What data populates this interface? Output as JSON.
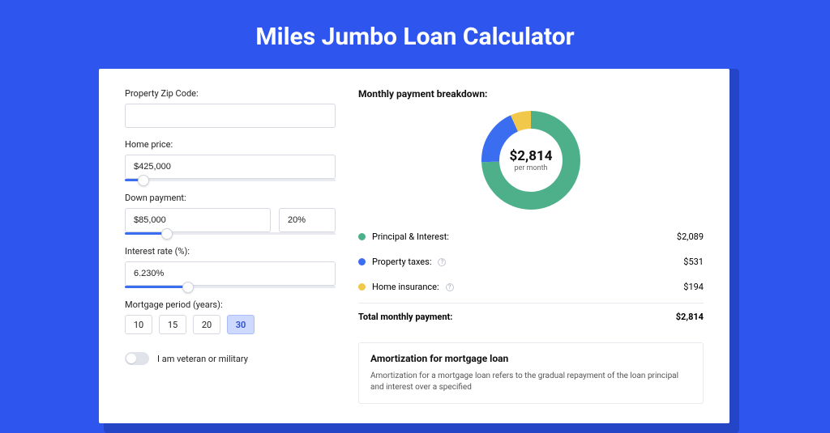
{
  "page": {
    "title": "Miles Jumbo Loan Calculator",
    "bg_color": "#2f55ef",
    "shadow_color": "#2545c7"
  },
  "form": {
    "zip": {
      "label": "Property Zip Code:",
      "value": ""
    },
    "home_price": {
      "label": "Home price:",
      "value": "$425,000",
      "slider_pct": 9
    },
    "down_payment": {
      "label": "Down payment:",
      "amount": "$85,000",
      "percent": "20%",
      "slider_pct": 20
    },
    "interest_rate": {
      "label": "Interest rate (%):",
      "value": "6.230%",
      "slider_pct": 30
    },
    "mortgage_period": {
      "label": "Mortgage period (years):",
      "options": [
        "10",
        "15",
        "20",
        "30"
      ],
      "selected": "30"
    },
    "veteran": {
      "label": "I am veteran or military",
      "checked": false
    }
  },
  "breakdown": {
    "title": "Monthly payment breakdown:",
    "center_amount": "$2,814",
    "center_sub": "per month",
    "items": [
      {
        "label": "Principal & Interest:",
        "amount": "$2,089",
        "color": "#4db08a",
        "value": 2089,
        "info": false
      },
      {
        "label": "Property taxes:",
        "amount": "$531",
        "color": "#3a6df0",
        "value": 531,
        "info": true
      },
      {
        "label": "Home insurance:",
        "amount": "$194",
        "color": "#f2c84b",
        "value": 194,
        "info": true
      }
    ],
    "total_label": "Total monthly payment:",
    "total_amount": "$2,814",
    "donut": {
      "radius": 50,
      "stroke_width": 22,
      "background": "#ffffff"
    }
  },
  "amortization": {
    "title": "Amortization for mortgage loan",
    "body": "Amortization for a mortgage loan refers to the gradual repayment of the loan principal and interest over a specified"
  }
}
